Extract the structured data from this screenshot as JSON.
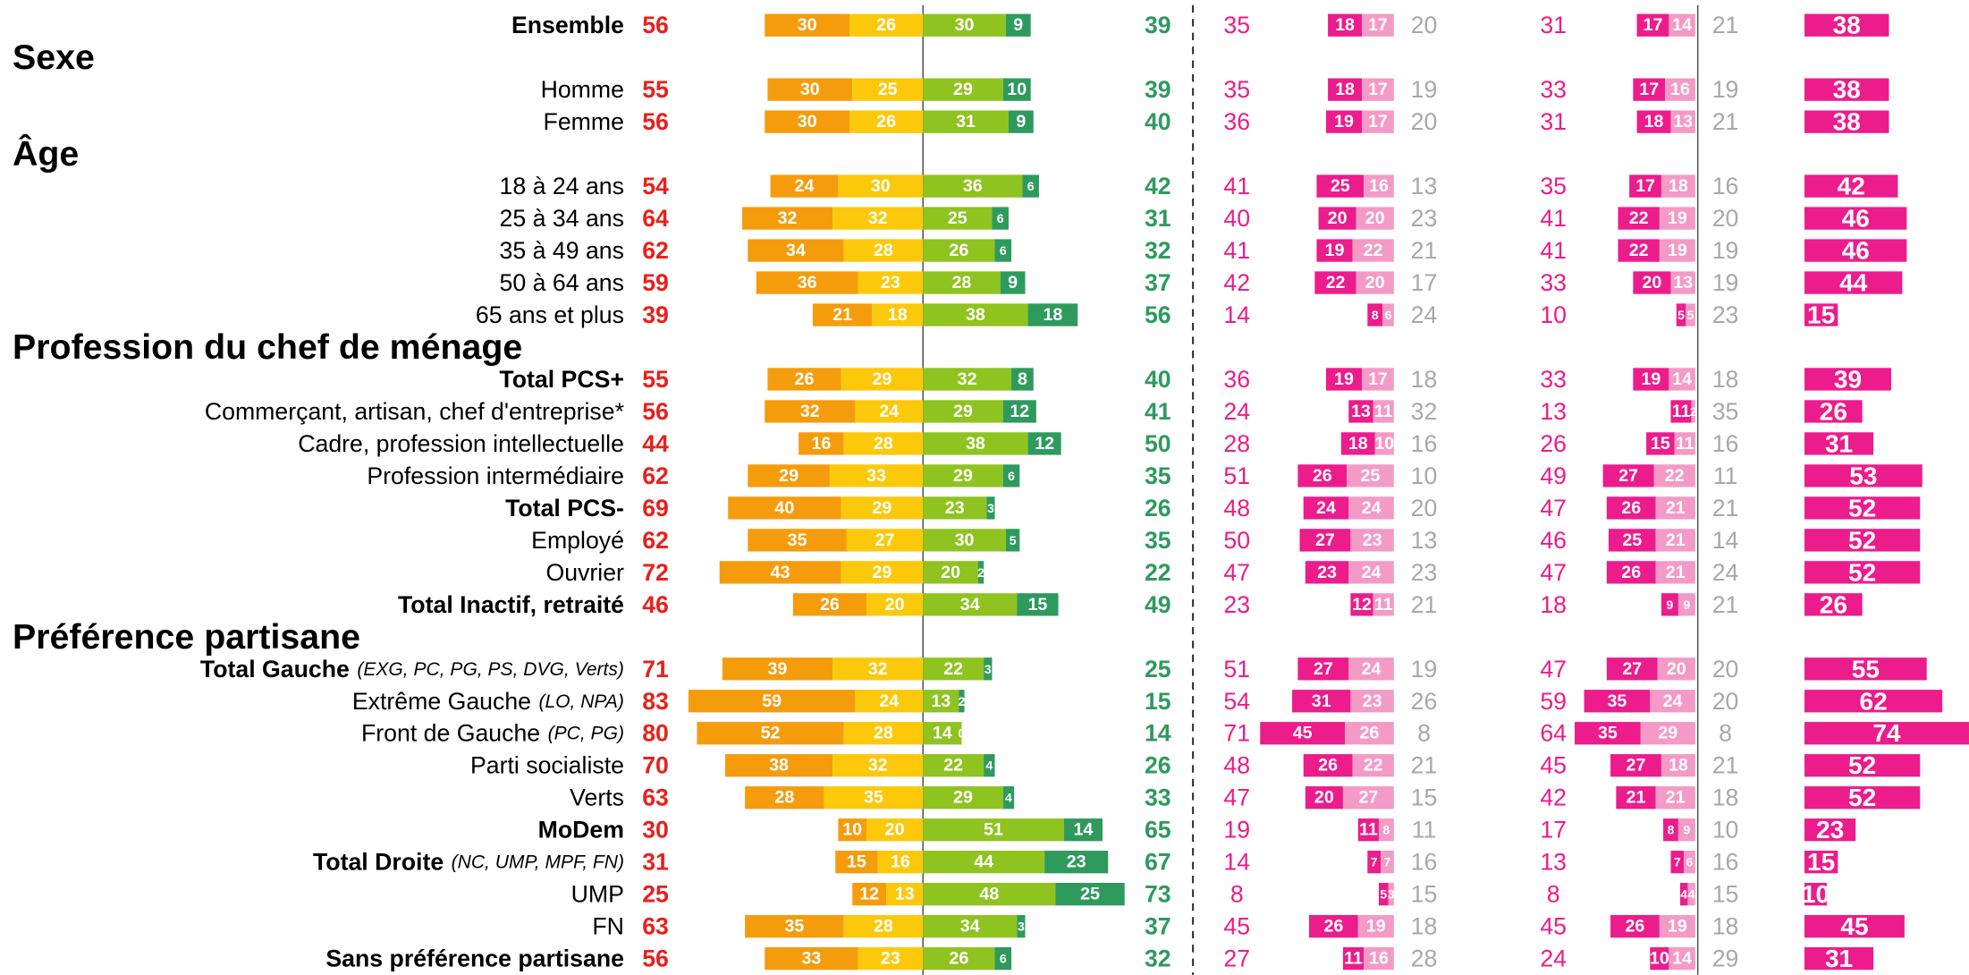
{
  "colors": [
    "#f59c0d",
    "#fcc80a",
    "#8fc31f",
    "#2e9a5e",
    "#ec1c8c",
    "#f49ac6",
    "#ec1c8c"
  ],
  "rows": [
    {
      "label": "Ensemble",
      "lead": true,
      "values": [
        56,
        30,
        26,
        30,
        9,
        39,
        35,
        18,
        17,
        20,
        31,
        17,
        14,
        21,
        38
      ]
    },
    {
      "section": "Sexe"
    },
    {
      "label": "Homme",
      "values": [
        55,
        30,
        25,
        29,
        10,
        39,
        35,
        18,
        17,
        19,
        33,
        17,
        16,
        19,
        38
      ]
    },
    {
      "label": "Femme",
      "values": [
        56,
        30,
        26,
        31,
        9,
        40,
        36,
        19,
        17,
        20,
        31,
        18,
        13,
        21,
        38
      ]
    },
    {
      "section": "Âge"
    },
    {
      "label": "18 à 24 ans",
      "values": [
        54,
        24,
        30,
        36,
        6,
        42,
        41,
        25,
        16,
        13,
        35,
        17,
        18,
        16,
        42
      ]
    },
    {
      "label": "25 à 34 ans",
      "values": [
        64,
        32,
        32,
        25,
        6,
        31,
        40,
        20,
        20,
        23,
        41,
        22,
        19,
        20,
        46
      ]
    },
    {
      "label": "35 à 49 ans",
      "values": [
        62,
        34,
        28,
        26,
        6,
        32,
        41,
        19,
        22,
        21,
        41,
        22,
        19,
        19,
        46
      ]
    },
    {
      "label": "50 à 64 ans",
      "values": [
        59,
        36,
        23,
        28,
        9,
        37,
        42,
        22,
        20,
        17,
        33,
        20,
        13,
        19,
        44
      ]
    },
    {
      "label": "65 ans et plus",
      "values": [
        39,
        21,
        18,
        38,
        18,
        56,
        14,
        8,
        6,
        24,
        10,
        5,
        5,
        23,
        15
      ]
    },
    {
      "section": "Profession du chef de ménage"
    },
    {
      "label": "Total PCS+",
      "bold": true,
      "values": [
        55,
        26,
        29,
        32,
        8,
        40,
        36,
        19,
        17,
        18,
        33,
        19,
        14,
        18,
        39
      ]
    },
    {
      "label": "Commerçant, artisan, chef d'entreprise*",
      "values": [
        56,
        32,
        24,
        29,
        12,
        41,
        24,
        13,
        11,
        32,
        13,
        11,
        2,
        35,
        26
      ]
    },
    {
      "label": "Cadre, profession intellectuelle",
      "values": [
        44,
        16,
        28,
        38,
        12,
        50,
        28,
        18,
        10,
        16,
        26,
        15,
        11,
        16,
        31
      ]
    },
    {
      "label": "Profession intermédiaire",
      "values": [
        62,
        29,
        33,
        29,
        6,
        35,
        51,
        26,
        25,
        10,
        49,
        27,
        22,
        11,
        53
      ]
    },
    {
      "label": "Total PCS-",
      "bold": true,
      "values": [
        69,
        40,
        29,
        23,
        3,
        26,
        48,
        24,
        24,
        20,
        47,
        26,
        21,
        21,
        52
      ]
    },
    {
      "label": "Employé",
      "values": [
        62,
        35,
        27,
        30,
        5,
        35,
        50,
        27,
        23,
        13,
        46,
        25,
        21,
        14,
        52
      ]
    },
    {
      "label": "Ouvrier",
      "values": [
        72,
        43,
        29,
        20,
        2,
        22,
        47,
        23,
        24,
        23,
        47,
        26,
        21,
        24,
        52
      ]
    },
    {
      "label": "Total Inactif, retraité",
      "bold": true,
      "values": [
        46,
        26,
        20,
        34,
        15,
        49,
        23,
        12,
        11,
        21,
        18,
        9,
        9,
        21,
        26
      ]
    },
    {
      "section": "Préférence partisane"
    },
    {
      "label": "Total Gauche",
      "note": "(EXG, PC, PG, PS, DVG, Verts)",
      "bold": true,
      "values": [
        71,
        39,
        32,
        22,
        3,
        25,
        51,
        27,
        24,
        19,
        47,
        27,
        20,
        20,
        55
      ]
    },
    {
      "label": "Extrême Gauche",
      "note": "(LO, NPA)",
      "values": [
        83,
        59,
        24,
        13,
        2,
        15,
        54,
        31,
        23,
        26,
        59,
        35,
        24,
        20,
        62
      ]
    },
    {
      "label": "Front de Gauche",
      "note": "(PC, PG)",
      "values": [
        80,
        52,
        28,
        14,
        0,
        14,
        71,
        45,
        26,
        8,
        64,
        35,
        29,
        8,
        74
      ]
    },
    {
      "label": "Parti socialiste",
      "values": [
        70,
        38,
        32,
        22,
        4,
        26,
        48,
        26,
        22,
        21,
        45,
        27,
        18,
        21,
        52
      ]
    },
    {
      "label": "Verts",
      "values": [
        63,
        28,
        35,
        29,
        4,
        33,
        47,
        20,
        27,
        15,
        42,
        21,
        21,
        18,
        52
      ]
    },
    {
      "label": "MoDem",
      "bold": true,
      "values": [
        30,
        10,
        20,
        51,
        14,
        65,
        19,
        11,
        8,
        11,
        17,
        8,
        9,
        10,
        23
      ]
    },
    {
      "label": "Total Droite",
      "note": "(NC, UMP, MPF, FN)",
      "bold": true,
      "values": [
        31,
        15,
        16,
        44,
        23,
        67,
        14,
        7,
        7,
        16,
        13,
        7,
        6,
        16,
        15
      ]
    },
    {
      "label": "UMP",
      "values": [
        25,
        12,
        13,
        48,
        25,
        73,
        8,
        5,
        3,
        15,
        8,
        4,
        4,
        15,
        10
      ]
    },
    {
      "label": "FN",
      "values": [
        63,
        35,
        28,
        34,
        3,
        37,
        45,
        26,
        19,
        18,
        45,
        26,
        19,
        18,
        45
      ]
    },
    {
      "label": "Sans préférence partisane",
      "bold": true,
      "values": [
        56,
        33,
        23,
        26,
        6,
        32,
        27,
        11,
        16,
        28,
        24,
        10,
        14,
        29,
        31
      ]
    }
  ]
}
